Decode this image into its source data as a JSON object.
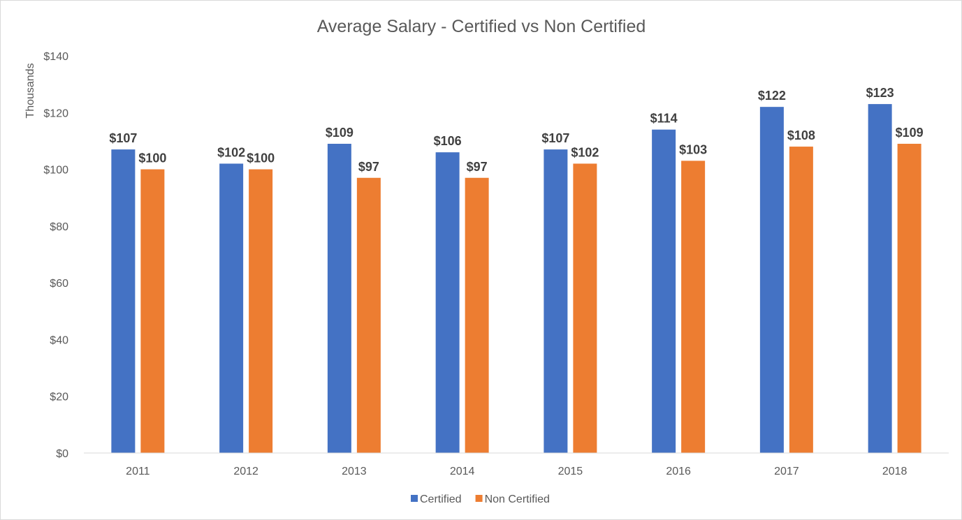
{
  "chart_data": {
    "type": "bar",
    "title": "Average Salary - Certified vs Non Certified",
    "xlabel": "",
    "ylabel": "Thousands",
    "categories": [
      "2011",
      "2012",
      "2013",
      "2014",
      "2015",
      "2016",
      "2017",
      "2018"
    ],
    "series": [
      {
        "name": "Certified",
        "color": "#4472c4",
        "values": [
          107,
          102,
          109,
          106,
          107,
          114,
          122,
          123
        ],
        "labels": [
          "$107",
          "$102",
          "$109",
          "$106",
          "$107",
          "$114",
          "$122",
          "$123"
        ]
      },
      {
        "name": "Non Certified",
        "color": "#ed7d31",
        "values": [
          100,
          100,
          97,
          97,
          102,
          103,
          108,
          109
        ],
        "labels": [
          "$100",
          "$100",
          "$97",
          "$97",
          "$102",
          "$103",
          "$108",
          "$109"
        ]
      }
    ],
    "ylim": [
      0,
      140
    ],
    "yticks": [
      0,
      20,
      40,
      60,
      80,
      100,
      120,
      140
    ],
    "ytick_labels": [
      "$0",
      "$20",
      "$40",
      "$60",
      "$80",
      "$100",
      "$120",
      "$140"
    ],
    "grid": false,
    "legend": "bottom"
  }
}
